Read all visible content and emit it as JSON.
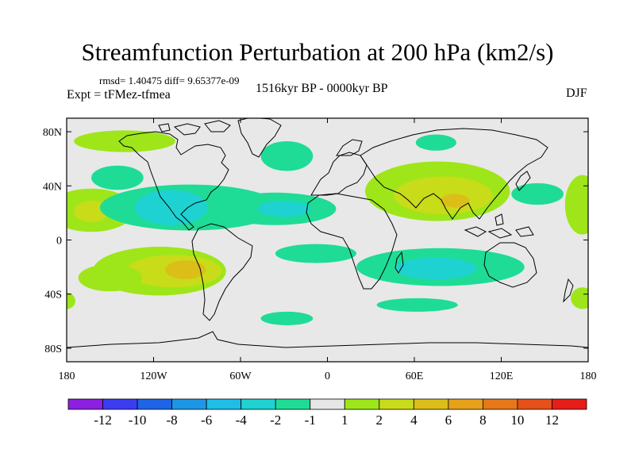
{
  "header": {
    "title": "Streamfunction Perturbation at 200 hPa (km2/s)",
    "stats": "rmsd= 1.40475  diff= 9.65377e-09",
    "experiment": "Expt = tFMez-tfmea",
    "period": "1516kyr BP - 0000kyr BP",
    "season": "DJF"
  },
  "colors": {
    "background_map": "#e8e8e8",
    "coastline": "#000000"
  },
  "chart_data": {
    "type": "contour-map",
    "title": "Streamfunction Perturbation at 200 hPa (km2/s)",
    "projection": "cylindrical-equidistant",
    "xlim": [
      -180,
      180
    ],
    "ylim": [
      -90,
      90
    ],
    "x_ticks": [
      {
        "value": -180,
        "label": "180"
      },
      {
        "value": -120,
        "label": "120W"
      },
      {
        "value": -60,
        "label": "60W"
      },
      {
        "value": 0,
        "label": "0"
      },
      {
        "value": 60,
        "label": "60E"
      },
      {
        "value": 120,
        "label": "120E"
      },
      {
        "value": 180,
        "label": "180"
      }
    ],
    "y_ticks": [
      {
        "value": 80,
        "label": "80N"
      },
      {
        "value": 40,
        "label": "40N"
      },
      {
        "value": 0,
        "label": "0"
      },
      {
        "value": -40,
        "label": "40S"
      },
      {
        "value": -80,
        "label": "80S"
      }
    ],
    "colorbar": {
      "colors": [
        "#8c20e0",
        "#3c3cf0",
        "#1e64e6",
        "#1e96e6",
        "#1ebee6",
        "#1ed2d2",
        "#1edc96",
        "#e6e6e6",
        "#9ee619",
        "#c8dc19",
        "#dcbe19",
        "#e6a019",
        "#e67819",
        "#e65019",
        "#e61e19"
      ],
      "labels": [
        "-12",
        "-10",
        "-8",
        "-6",
        "-4",
        "-2",
        "-1",
        "1",
        "2",
        "4",
        "6",
        "8",
        "10",
        "12"
      ]
    },
    "contour_regions": [
      {
        "level": 1,
        "lon": -163,
        "lat": 22,
        "rlon": 30,
        "rlat": 16
      },
      {
        "level": 2,
        "lon": -163,
        "lat": 21,
        "rlon": 12,
        "rlat": 8
      },
      {
        "level": 1,
        "lon": -116,
        "lat": -23,
        "rlon": 46,
        "rlat": 18
      },
      {
        "level": 2,
        "lon": -106,
        "lat": -23,
        "rlon": 33,
        "rlat": 12
      },
      {
        "level": 3,
        "lon": -98,
        "lat": -22,
        "rlon": 14,
        "rlat": 7
      },
      {
        "level": 1,
        "lon": -150,
        "lat": -28,
        "rlon": 22,
        "rlat": 10
      },
      {
        "level": 1,
        "lon": -140,
        "lat": 73,
        "rlon": 35,
        "rlat": 8
      },
      {
        "level": 1,
        "lon": 76,
        "lat": 36,
        "rlon": 50,
        "rlat": 22
      },
      {
        "level": 2,
        "lon": 80,
        "lat": 33,
        "rlon": 34,
        "rlat": 14
      },
      {
        "level": 3,
        "lon": 88,
        "lat": 29,
        "rlon": 10,
        "rlat": 5
      },
      {
        "level": 1,
        "lon": 176,
        "lat": 26,
        "rlon": 12,
        "rlat": 22
      },
      {
        "level": 1,
        "lon": 176,
        "lat": -43,
        "rlon": 8,
        "rlat": 8
      },
      {
        "level": 1,
        "lon": -180,
        "lat": -45,
        "rlon": 6,
        "rlat": 6
      },
      {
        "level": -1,
        "lon": -95,
        "lat": 24,
        "rlon": 62,
        "rlat": 17
      },
      {
        "level": -2,
        "lon": -108,
        "lat": 24,
        "rlon": 25,
        "rlat": 13
      },
      {
        "level": -1,
        "lon": -36,
        "lat": 23,
        "rlon": 42,
        "rlat": 12
      },
      {
        "level": -2,
        "lon": -30,
        "lat": 23,
        "rlon": 18,
        "rlat": 6
      },
      {
        "level": -1,
        "lon": -145,
        "lat": 46,
        "rlon": 18,
        "rlat": 9
      },
      {
        "level": -1,
        "lon": -8,
        "lat": -10,
        "rlon": 28,
        "rlat": 7
      },
      {
        "level": -1,
        "lon": 78,
        "lat": -20,
        "rlon": 58,
        "rlat": 14
      },
      {
        "level": -2,
        "lon": 75,
        "lat": -21,
        "rlon": 28,
        "rlat": 8
      },
      {
        "level": -1,
        "lon": -28,
        "lat": 62,
        "rlon": 18,
        "rlat": 11
      },
      {
        "level": -1,
        "lon": 75,
        "lat": 72,
        "rlon": 14,
        "rlat": 6
      },
      {
        "level": -1,
        "lon": 145,
        "lat": 34,
        "rlon": 18,
        "rlat": 8
      },
      {
        "level": -1,
        "lon": 62,
        "lat": -48,
        "rlon": 28,
        "rlat": 5
      },
      {
        "level": -1,
        "lon": -28,
        "lat": -58,
        "rlon": 18,
        "rlat": 5
      }
    ]
  }
}
